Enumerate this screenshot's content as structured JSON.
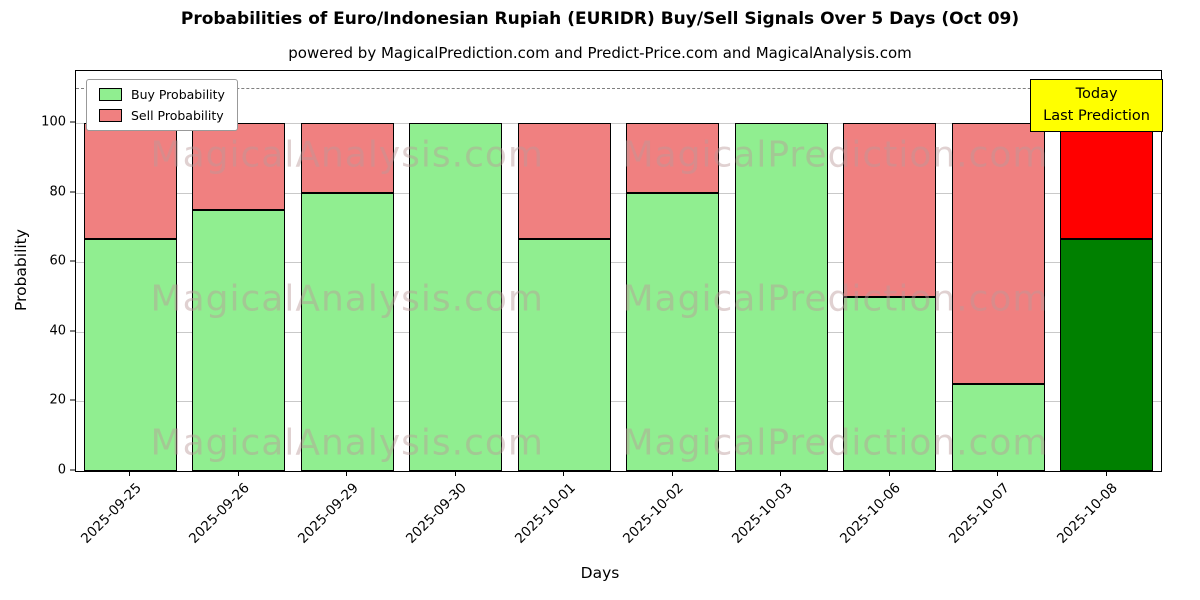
{
  "chart_data": {
    "type": "bar",
    "stacked": true,
    "title": "Probabilities of Euro/Indonesian Rupiah (EURIDR) Buy/Sell Signals Over 5 Days (Oct 09)",
    "subtitle": "powered by MagicalPrediction.com and Predict-Price.com and MagicalAnalysis.com",
    "xlabel": "Days",
    "ylabel": "Probability",
    "categories": [
      "2025-09-25",
      "2025-09-26",
      "2025-09-29",
      "2025-09-30",
      "2025-10-01",
      "2025-10-02",
      "2025-10-03",
      "2025-10-06",
      "2025-10-07",
      "2025-10-08"
    ],
    "series": [
      {
        "name": "Buy Probability",
        "color": "#90ee90",
        "values": [
          66.67,
          75,
          80,
          100,
          66.67,
          80,
          100,
          50,
          25,
          66.67
        ]
      },
      {
        "name": "Sell Probability",
        "color": "#f08080",
        "values": [
          33.33,
          25,
          20,
          0,
          33.33,
          20,
          0,
          50,
          75,
          33.33
        ]
      }
    ],
    "today_index": 9,
    "today_colors": {
      "buy": "#008000",
      "sell": "#ff0000"
    },
    "ylim": [
      0,
      115
    ],
    "yticks": [
      0,
      20,
      40,
      60,
      80,
      100
    ],
    "dashed_line_y": 110,
    "grid": true,
    "legend_position": "upper left",
    "annotation": {
      "line1": "Today",
      "line2": "Last Prediction",
      "bg_color": "#ffff00"
    },
    "watermarks": [
      "MagicalAnalysis.com",
      "MagicalPrediction.com"
    ]
  }
}
